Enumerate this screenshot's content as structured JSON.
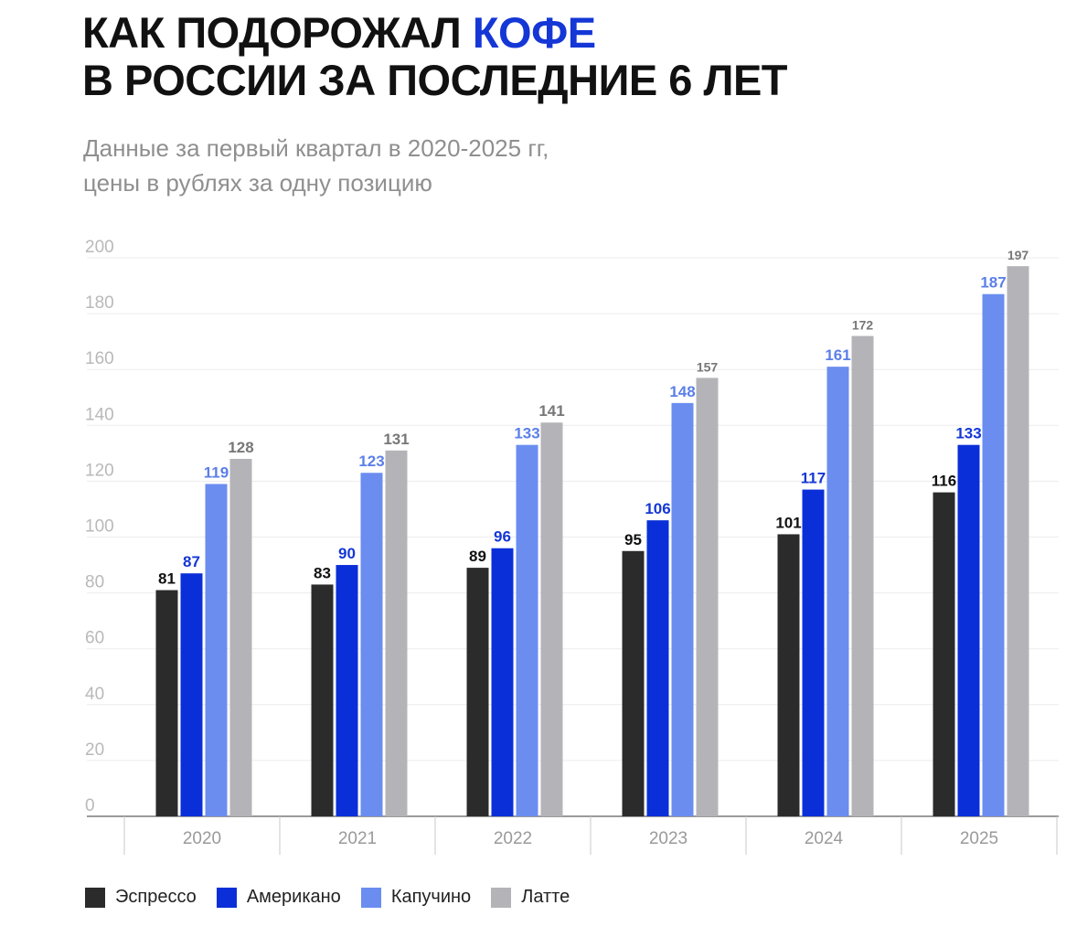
{
  "header": {
    "title_line1_prefix": "КАК ПОДОРОЖАЛ",
    "title_line1_accent": "КОФЕ",
    "title_line2": "В РОССИИ ЗА ПОСЛЕДНИЕ 6 ЛЕТ",
    "subtitle_line1": "Данные за первый квартал в 2020-2025 гг,",
    "subtitle_line2": "цены в рублях за одну позицию"
  },
  "colors": {
    "accent": "#1437d6",
    "title": "#111111",
    "subtitle": "#8f8f8f"
  },
  "chart_data": {
    "type": "bar",
    "title": "КАК ПОДОРОЖАЛ КОФЕ В РОССИИ ЗА ПОСЛЕДНИЕ 6 ЛЕТ",
    "subtitle": "Данные за первый квартал в 2020-2025 гг, цены в рублях за одну позицию",
    "xlabel": "",
    "ylabel": "",
    "ylim": [
      0,
      200
    ],
    "yticks": [
      0,
      20,
      40,
      60,
      80,
      100,
      120,
      140,
      160,
      180,
      200
    ],
    "grid": true,
    "legend_position": "bottom-left",
    "categories": [
      "2020",
      "2021",
      "2022",
      "2023",
      "2024",
      "2025"
    ],
    "series": [
      {
        "name": "Эспрессо",
        "color": "#2b2b2b",
        "label_color": "#111111",
        "values": [
          81,
          83,
          89,
          95,
          101,
          116
        ]
      },
      {
        "name": "Американо",
        "color": "#0a2fd8",
        "label_color": "#1437d6",
        "values": [
          87,
          90,
          96,
          106,
          117,
          133
        ]
      },
      {
        "name": "Капучино",
        "color": "#6b8df0",
        "label_color": "#5b7fe8",
        "values": [
          119,
          123,
          133,
          148,
          161,
          187
        ]
      },
      {
        "name": "Латте",
        "color": "#b4b4b8",
        "label_color": "#777777",
        "values": [
          128,
          131,
          141,
          157,
          172,
          197
        ]
      }
    ]
  }
}
